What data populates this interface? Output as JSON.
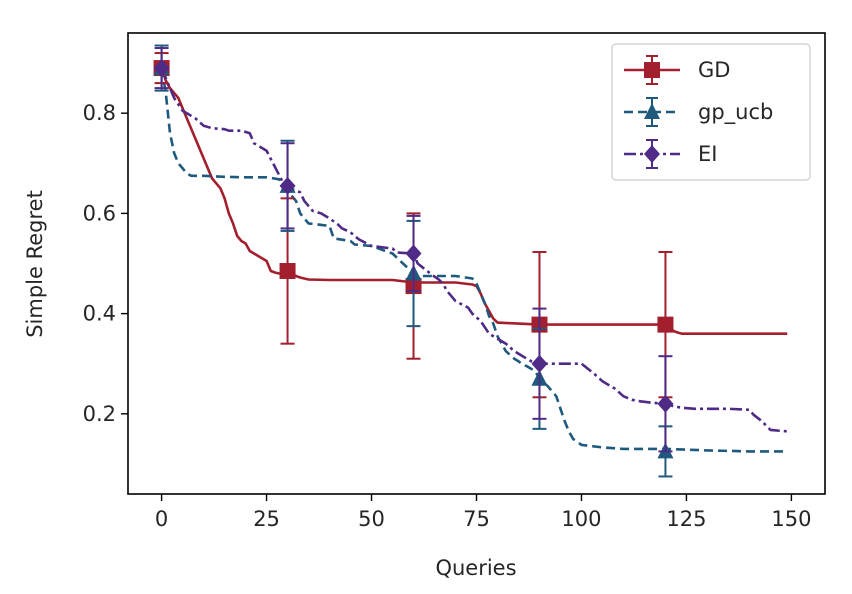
{
  "chart_data": {
    "type": "line",
    "title": "",
    "xlabel": "Queries",
    "ylabel": "Simple Regret",
    "xlim": [
      -8,
      158
    ],
    "ylim": [
      0.04,
      0.96
    ],
    "xticks": [
      0,
      25,
      50,
      75,
      100,
      125,
      150
    ],
    "yticks": [
      0.2,
      0.4,
      0.6,
      0.8
    ],
    "ytick_labels": [
      "0.2",
      "0.4",
      "0.6",
      "0.8"
    ],
    "grid": false,
    "legend_position": "top-right",
    "series": [
      {
        "name": "GD",
        "color": "#a31f2e",
        "linestyle": "solid",
        "marker": "square",
        "x": [
          0,
          1,
          2,
          3,
          4,
          5,
          6,
          7,
          8,
          9,
          10,
          11,
          12,
          13,
          14,
          15,
          16,
          17,
          18,
          19,
          20,
          21,
          22,
          23,
          24,
          25,
          26,
          27,
          28,
          29,
          30,
          31,
          32,
          33,
          34,
          35,
          40,
          45,
          50,
          55,
          60,
          65,
          70,
          72,
          74,
          75,
          76,
          77,
          78,
          79,
          80,
          85,
          90,
          95,
          100,
          110,
          120,
          121,
          122,
          123,
          124,
          125,
          130,
          140,
          149
        ],
        "y": [
          0.89,
          0.865,
          0.85,
          0.84,
          0.83,
          0.81,
          0.79,
          0.77,
          0.75,
          0.73,
          0.71,
          0.69,
          0.67,
          0.66,
          0.65,
          0.63,
          0.6,
          0.58,
          0.555,
          0.545,
          0.54,
          0.525,
          0.52,
          0.515,
          0.51,
          0.505,
          0.485,
          0.482,
          0.48,
          0.48,
          0.48,
          0.478,
          0.475,
          0.472,
          0.47,
          0.468,
          0.467,
          0.467,
          0.467,
          0.467,
          0.462,
          0.462,
          0.462,
          0.46,
          0.458,
          0.455,
          0.44,
          0.42,
          0.405,
          0.39,
          0.382,
          0.38,
          0.378,
          0.378,
          0.378,
          0.378,
          0.378,
          0.372,
          0.365,
          0.362,
          0.36,
          0.36,
          0.36,
          0.36,
          0.36
        ],
        "error_points": [
          {
            "x": 0,
            "y": 0.89,
            "err": 0.03
          },
          {
            "x": 30,
            "y": 0.485,
            "err": 0.145
          },
          {
            "x": 60,
            "y": 0.455,
            "err": 0.145
          },
          {
            "x": 90,
            "y": 0.378,
            "err": 0.145
          },
          {
            "x": 120,
            "y": 0.378,
            "err": 0.145
          }
        ]
      },
      {
        "name": "gp_ucb",
        "color": "#1f5a7e",
        "linestyle": "dashed",
        "marker": "triangle",
        "x": [
          0,
          1,
          2,
          3,
          4,
          5,
          6,
          7,
          10,
          15,
          20,
          25,
          28,
          30,
          32,
          33,
          34,
          35,
          40,
          41,
          45,
          46,
          50,
          55,
          60,
          61,
          65,
          70,
          74,
          75,
          76,
          77,
          78,
          79,
          80,
          81,
          82,
          84,
          85,
          86,
          87,
          88,
          89,
          90,
          92,
          94,
          95,
          96,
          97,
          98,
          100,
          105,
          110,
          120,
          130,
          140,
          149
        ],
        "y": [
          0.89,
          0.84,
          0.76,
          0.72,
          0.7,
          0.69,
          0.68,
          0.675,
          0.675,
          0.673,
          0.672,
          0.672,
          0.668,
          0.645,
          0.625,
          0.6,
          0.59,
          0.58,
          0.575,
          0.55,
          0.545,
          0.538,
          0.535,
          0.52,
          0.48,
          0.475,
          0.475,
          0.475,
          0.47,
          0.46,
          0.44,
          0.42,
          0.395,
          0.38,
          0.355,
          0.34,
          0.325,
          0.31,
          0.305,
          0.298,
          0.295,
          0.29,
          0.285,
          0.27,
          0.255,
          0.235,
          0.21,
          0.185,
          0.165,
          0.15,
          0.138,
          0.133,
          0.13,
          0.13,
          0.127,
          0.125,
          0.125
        ],
        "error_points": [
          {
            "x": 0,
            "y": 0.89,
            "err": 0.045
          },
          {
            "x": 30,
            "y": 0.655,
            "err": 0.09
          },
          {
            "x": 60,
            "y": 0.48,
            "err": 0.105
          },
          {
            "x": 90,
            "y": 0.27,
            "err": 0.1
          },
          {
            "x": 120,
            "y": 0.125,
            "err": 0.05
          }
        ]
      },
      {
        "name": "EI",
        "color": "#4f2a86",
        "linestyle": "dashdot",
        "marker": "diamond",
        "x": [
          0,
          3,
          5,
          8,
          10,
          12,
          15,
          16,
          19,
          21,
          22,
          25,
          29,
          30,
          33,
          34,
          35,
          36,
          38,
          40,
          42,
          43,
          45,
          47,
          50,
          55,
          56,
          60,
          61,
          64,
          66,
          67,
          68,
          70,
          73,
          74,
          76,
          78,
          80,
          82,
          84,
          86,
          88,
          90,
          92,
          95,
          100,
          103,
          105,
          108,
          110,
          112,
          114,
          117,
          120,
          122,
          124,
          127,
          130,
          135,
          140,
          141,
          143,
          145,
          149
        ],
        "y": [
          0.89,
          0.83,
          0.805,
          0.79,
          0.775,
          0.77,
          0.768,
          0.765,
          0.765,
          0.76,
          0.74,
          0.725,
          0.66,
          0.652,
          0.642,
          0.625,
          0.615,
          0.605,
          0.6,
          0.59,
          0.578,
          0.57,
          0.562,
          0.548,
          0.535,
          0.53,
          0.522,
          0.52,
          0.5,
          0.48,
          0.468,
          0.46,
          0.445,
          0.425,
          0.412,
          0.4,
          0.385,
          0.36,
          0.35,
          0.34,
          0.325,
          0.315,
          0.305,
          0.3,
          0.3,
          0.3,
          0.3,
          0.28,
          0.265,
          0.25,
          0.235,
          0.228,
          0.225,
          0.222,
          0.22,
          0.215,
          0.212,
          0.21,
          0.21,
          0.21,
          0.208,
          0.198,
          0.185,
          0.168,
          0.165
        ],
        "error_points": [
          {
            "x": 0,
            "y": 0.89,
            "err": 0.04
          },
          {
            "x": 30,
            "y": 0.655,
            "err": 0.085
          },
          {
            "x": 60,
            "y": 0.52,
            "err": 0.075
          },
          {
            "x": 90,
            "y": 0.3,
            "err": 0.11
          },
          {
            "x": 120,
            "y": 0.22,
            "err": 0.095
          }
        ]
      }
    ]
  }
}
